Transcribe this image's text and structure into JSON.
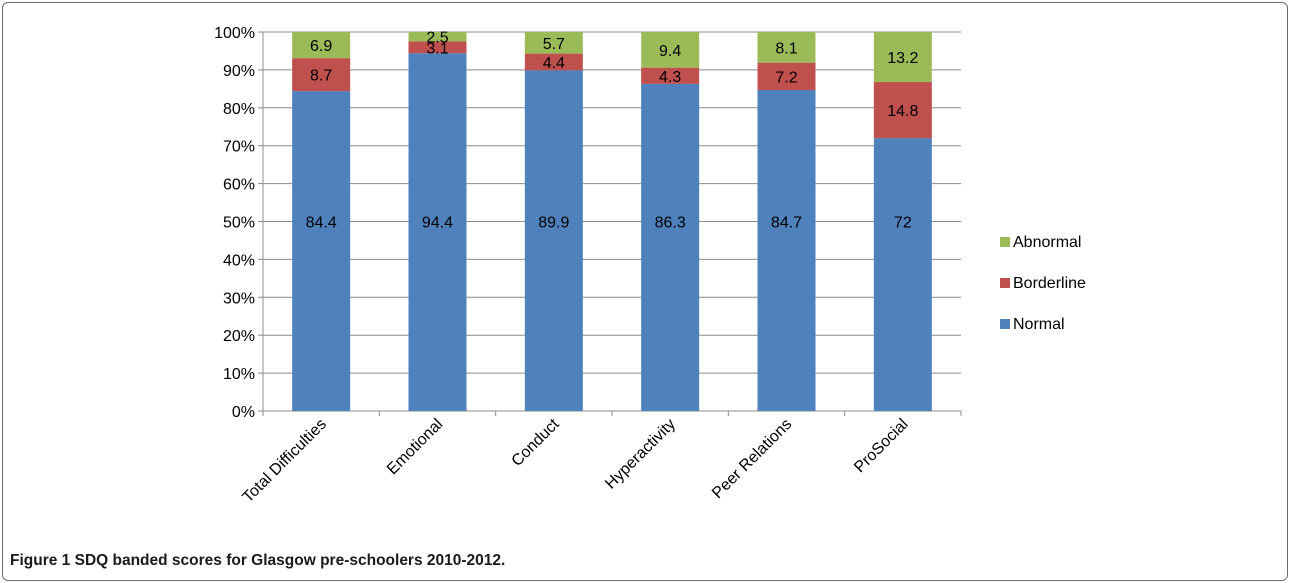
{
  "chart_data": {
    "type": "bar",
    "stacked": true,
    "percent_axis": true,
    "categories": [
      "Total Difficulties",
      "Emotional",
      "Conduct",
      "Hyperactivity",
      "Peer Relations",
      "ProSocial"
    ],
    "series": [
      {
        "name": "Normal",
        "color": "#4f81bd",
        "values": [
          84.4,
          94.4,
          89.9,
          86.3,
          84.7,
          72
        ]
      },
      {
        "name": "Borderline",
        "color": "#c0504d",
        "values": [
          8.7,
          3.1,
          4.4,
          4.3,
          7.2,
          14.8
        ]
      },
      {
        "name": "Abnormal",
        "color": "#9bbb59",
        "values": [
          6.9,
          2.5,
          5.7,
          9.4,
          8.1,
          13.2
        ]
      }
    ],
    "ylim": [
      0,
      100
    ],
    "yticks": [
      "0%",
      "10%",
      "20%",
      "30%",
      "40%",
      "50%",
      "60%",
      "70%",
      "80%",
      "90%",
      "100%"
    ],
    "grid": true,
    "legend_position": "right",
    "xlabel": "",
    "ylabel": ""
  },
  "caption": {
    "label": "Figure 1",
    "text": "SDQ banded scores for Glasgow pre-schoolers 2010-2012."
  }
}
